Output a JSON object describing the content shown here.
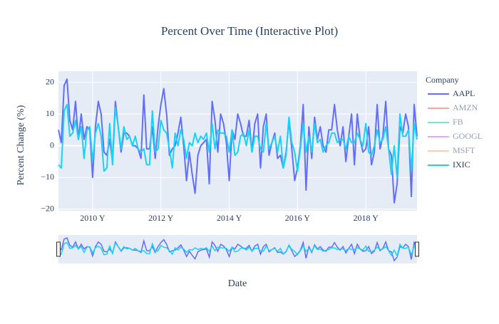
{
  "chart_data": {
    "type": "line",
    "title": "Percent Over Time (Interactive Plot)",
    "x_label": "Date",
    "y_label": "Percent Change (%)",
    "legend_title": "Company",
    "x": [
      "2009-01",
      "2009-02",
      "2009-03",
      "2009-04",
      "2009-05",
      "2009-06",
      "2009-07",
      "2009-08",
      "2009-09",
      "2009-10",
      "2009-11",
      "2009-12",
      "2010-01",
      "2010-02",
      "2010-03",
      "2010-04",
      "2010-05",
      "2010-06",
      "2010-07",
      "2010-08",
      "2010-09",
      "2010-10",
      "2010-11",
      "2010-12",
      "2011-01",
      "2011-02",
      "2011-03",
      "2011-04",
      "2011-05",
      "2011-06",
      "2011-07",
      "2011-08",
      "2011-09",
      "2011-10",
      "2011-11",
      "2011-12",
      "2012-01",
      "2012-02",
      "2012-03",
      "2012-04",
      "2012-05",
      "2012-06",
      "2012-07",
      "2012-08",
      "2012-09",
      "2012-10",
      "2012-11",
      "2012-12",
      "2013-01",
      "2013-02",
      "2013-03",
      "2013-04",
      "2013-05",
      "2013-06",
      "2013-07",
      "2013-08",
      "2013-09",
      "2013-10",
      "2013-11",
      "2013-12",
      "2014-01",
      "2014-02",
      "2014-03",
      "2014-04",
      "2014-05",
      "2014-06",
      "2014-07",
      "2014-08",
      "2014-09",
      "2014-10",
      "2014-11",
      "2014-12",
      "2015-01",
      "2015-02",
      "2015-03",
      "2015-04",
      "2015-05",
      "2015-06",
      "2015-07",
      "2015-08",
      "2015-09",
      "2015-10",
      "2015-11",
      "2015-12",
      "2016-01",
      "2016-02",
      "2016-03",
      "2016-04",
      "2016-05",
      "2016-06",
      "2016-07",
      "2016-08",
      "2016-09",
      "2016-10",
      "2016-11",
      "2016-12",
      "2017-01",
      "2017-02",
      "2017-03",
      "2017-04",
      "2017-05",
      "2017-06",
      "2017-07",
      "2017-08",
      "2017-09",
      "2017-10",
      "2017-11",
      "2017-12",
      "2018-01",
      "2018-02",
      "2018-03",
      "2018-04",
      "2018-05",
      "2018-06",
      "2018-07",
      "2018-08",
      "2018-09",
      "2018-10",
      "2018-11",
      "2018-12",
      "2019-01",
      "2019-02",
      "2019-03",
      "2019-04",
      "2019-05",
      "2019-06",
      "2019-07"
    ],
    "series": [
      {
        "name": "AAPL",
        "color": "#636efa",
        "visible": true,
        "values": [
          5,
          1,
          19,
          21,
          8,
          5,
          14,
          2,
          10,
          2,
          6,
          5,
          -10,
          6,
          14,
          10,
          -2,
          -3,
          2,
          -5,
          14,
          6,
          -2,
          4,
          4,
          3,
          0,
          0,
          -1,
          -4,
          16,
          -1,
          -1,
          6,
          -4,
          6,
          13,
          18,
          10,
          -3,
          -1,
          0,
          4,
          9,
          0,
          -11,
          -2,
          -9,
          -15,
          -3,
          0,
          1,
          2,
          -12,
          14,
          8,
          -2,
          10,
          7,
          1,
          -11,
          5,
          2,
          10,
          7,
          3,
          3,
          8,
          -2,
          7,
          10,
          -7,
          6,
          10,
          -3,
          1,
          4,
          -4,
          -3,
          -7,
          -2,
          8,
          -1,
          -11,
          -7,
          0,
          13,
          -14,
          6,
          -4,
          9,
          2,
          6,
          0,
          -2,
          5,
          5,
          13,
          5,
          0,
          6,
          -5,
          3,
          10,
          -6,
          10,
          2,
          -2,
          -1,
          6,
          -6,
          -2,
          13,
          -1,
          3,
          14,
          -1,
          -3,
          -18,
          -12,
          6,
          4,
          10,
          6,
          -16,
          13,
          3
        ]
      },
      {
        "name": "AMZN",
        "color": "#EF553B",
        "visible": false
      },
      {
        "name": "FB",
        "color": "#00cc96",
        "visible": false
      },
      {
        "name": "GOOGL",
        "color": "#ab63fa",
        "visible": false
      },
      {
        "name": "MSFT",
        "color": "#FFA15A",
        "visible": false
      },
      {
        "name": "IXIC",
        "color": "#19d3f3",
        "visible": true,
        "values": [
          -6,
          -7,
          11,
          13,
          3,
          4,
          8,
          2,
          6,
          -4,
          5,
          6,
          -5,
          4,
          7,
          3,
          -8,
          -7,
          7,
          -6,
          12,
          6,
          -1,
          6,
          2,
          3,
          0,
          3,
          -1,
          -2,
          -1,
          -6,
          -6,
          11,
          -2,
          -1,
          8,
          5,
          4,
          -1,
          -7,
          4,
          0,
          5,
          2,
          -4,
          1,
          0,
          4,
          1,
          3,
          2,
          4,
          -2,
          7,
          -1,
          5,
          4,
          4,
          3,
          -2,
          5,
          -3,
          -2,
          3,
          4,
          0,
          5,
          -2,
          3,
          3,
          -1,
          -2,
          7,
          -1,
          1,
          3,
          -2,
          3,
          -7,
          -3,
          9,
          1,
          -2,
          -8,
          -1,
          7,
          -2,
          3,
          -2,
          7,
          1,
          2,
          -2,
          0,
          1,
          4,
          4,
          1,
          2,
          2,
          -1,
          3,
          1,
          1,
          4,
          2,
          0,
          7,
          -2,
          -3,
          0,
          5,
          1,
          2,
          6,
          -1,
          -9,
          0,
          -10,
          10,
          3,
          3,
          5,
          -8,
          7,
          2
        ]
      }
    ],
    "xlim": [
      "2009-01",
      "2019-07"
    ],
    "xticks": [
      {
        "value": "2010-01",
        "label": "2010 Y"
      },
      {
        "value": "2012-01",
        "label": "2012 Y"
      },
      {
        "value": "2014-01",
        "label": "2014 Y"
      },
      {
        "value": "2016-01",
        "label": "2016 Y"
      },
      {
        "value": "2018-01",
        "label": "2018 Y"
      }
    ],
    "ylim": [
      -20.5,
      23.5
    ],
    "yticks": [
      {
        "value": -20,
        "label": "−20"
      },
      {
        "value": -10,
        "label": "−10"
      },
      0,
      10,
      20
    ],
    "grid": true,
    "range_slider": true,
    "legend_position": "right"
  }
}
